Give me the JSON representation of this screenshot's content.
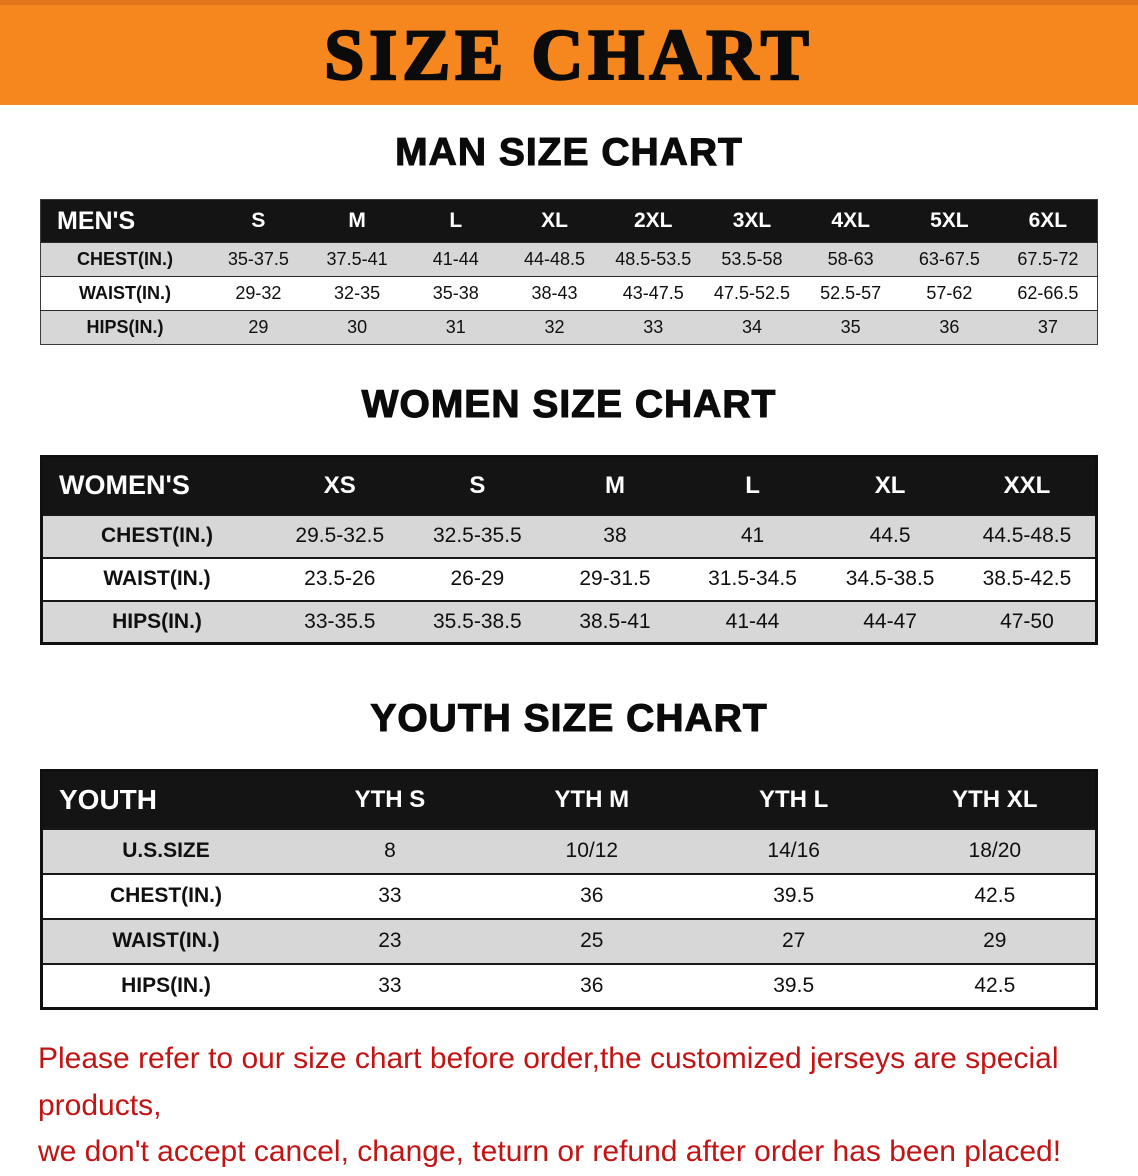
{
  "banner": {
    "title": "SIZE CHART"
  },
  "colors": {
    "banner_bg": "#f6871f",
    "table_header_bg": "#141414",
    "row_alt_bg": "#d7d7d7",
    "notice_text": "#c11414"
  },
  "men": {
    "heading": "MAN SIZE CHART",
    "header": [
      "MEN'S",
      "S",
      "M",
      "L",
      "XL",
      "2XL",
      "3XL",
      "4XL",
      "5XL",
      "6XL"
    ],
    "rows": [
      [
        "CHEST(IN.)",
        "35-37.5",
        "37.5-41",
        "41-44",
        "44-48.5",
        "48.5-53.5",
        "53.5-58",
        "58-63",
        "63-67.5",
        "67.5-72"
      ],
      [
        "WAIST(IN.)",
        "29-32",
        "32-35",
        "35-38",
        "38-43",
        "43-47.5",
        "47.5-52.5",
        "52.5-57",
        "57-62",
        "62-66.5"
      ],
      [
        "HIPS(IN.)",
        "29",
        "30",
        "31",
        "32",
        "33",
        "34",
        "35",
        "36",
        "37"
      ]
    ]
  },
  "women": {
    "heading": "WOMEN SIZE CHART",
    "header": [
      "WOMEN'S",
      "XS",
      "S",
      "M",
      "L",
      "XL",
      "XXL"
    ],
    "rows": [
      [
        "CHEST(IN.)",
        "29.5-32.5",
        "32.5-35.5",
        "38",
        "41",
        "44.5",
        "44.5-48.5"
      ],
      [
        "WAIST(IN.)",
        "23.5-26",
        "26-29",
        "29-31.5",
        "31.5-34.5",
        "34.5-38.5",
        "38.5-42.5"
      ],
      [
        "HIPS(IN.)",
        "33-35.5",
        "35.5-38.5",
        "38.5-41",
        "41-44",
        "44-47",
        "47-50"
      ]
    ]
  },
  "youth": {
    "heading": "YOUTH SIZE CHART",
    "header": [
      "YOUTH",
      "YTH S",
      "YTH M",
      "YTH L",
      "YTH XL"
    ],
    "rows": [
      [
        "U.S.SIZE",
        "8",
        "10/12",
        "14/16",
        "18/20"
      ],
      [
        "CHEST(IN.)",
        "33",
        "36",
        "39.5",
        "42.5"
      ],
      [
        "WAIST(IN.)",
        "23",
        "25",
        "27",
        "29"
      ],
      [
        "HIPS(IN.)",
        "33",
        "36",
        "39.5",
        "42.5"
      ]
    ]
  },
  "footer": {
    "line1": "Please refer to our size chart before order,the customized jerseys are special products,",
    "line2": "we don't accept cancel, change, teturn or refund after order has been placed!"
  }
}
